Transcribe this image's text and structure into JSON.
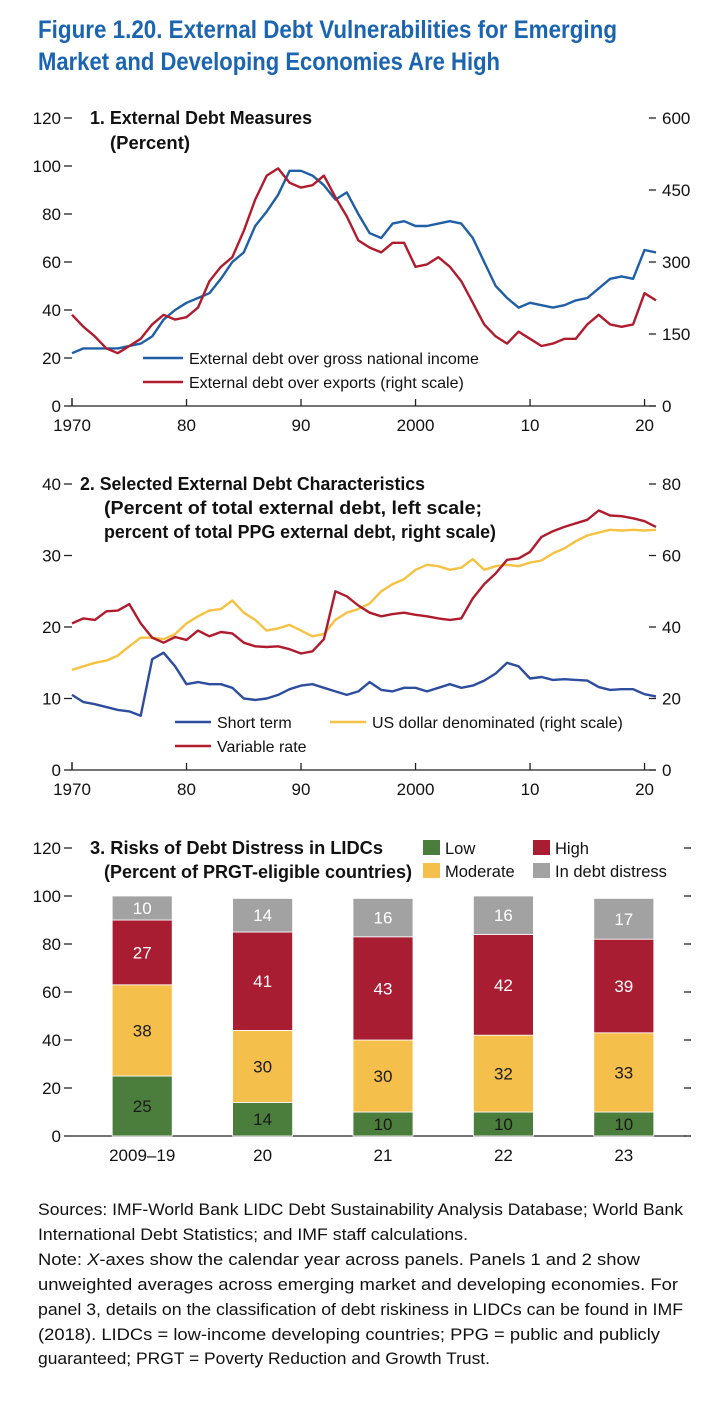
{
  "title": [
    "Figure 1.20. External Debt Vulnerabilities for Emerging",
    "Market and Developing Economies Are High"
  ],
  "chart_data": [
    {
      "type": "line",
      "title": "1. External Debt Measures",
      "subtitle": [
        "(Percent)"
      ],
      "x": [
        1970,
        1971,
        1972,
        1973,
        1974,
        1975,
        1976,
        1977,
        1978,
        1979,
        1980,
        1981,
        1982,
        1983,
        1984,
        1985,
        1986,
        1987,
        1988,
        1989,
        1990,
        1991,
        1992,
        1993,
        1994,
        1995,
        1996,
        1997,
        1998,
        1999,
        2000,
        2001,
        2002,
        2003,
        2004,
        2005,
        2006,
        2007,
        2008,
        2009,
        2010,
        2011,
        2012,
        2013,
        2014,
        2015,
        2016,
        2017,
        2018,
        2019,
        2020,
        2021
      ],
      "xlim": [
        1970,
        2021
      ],
      "xticks": [
        1970,
        {
          "value": 1980,
          "label": "80"
        },
        {
          "value": 1990,
          "label": "90"
        },
        2000,
        {
          "value": 2010,
          "label": "10"
        },
        {
          "value": 2020,
          "label": "20"
        }
      ],
      "ylim": [
        0,
        120
      ],
      "yticks": [
        0,
        20,
        40,
        60,
        80,
        100,
        120
      ],
      "y2lim": [
        0,
        600
      ],
      "y2ticks": [
        0,
        150,
        300,
        450,
        600
      ],
      "series": [
        {
          "name": "External debt over gross national income",
          "color": "#1f5fa6",
          "values": [
            22,
            24,
            24,
            24,
            24,
            25,
            26,
            29,
            36,
            40,
            43,
            45,
            47,
            53,
            60,
            64,
            75,
            81,
            88,
            98,
            98,
            96,
            92,
            86,
            89,
            80,
            72,
            70,
            76,
            77,
            75,
            75,
            76,
            77,
            76,
            70,
            60,
            50,
            45,
            41,
            43,
            42,
            41,
            42,
            44,
            45,
            49,
            53,
            54,
            53,
            65,
            64
          ]
        },
        {
          "name": "External debt over exports (right scale)",
          "color": "#b01c2e",
          "axis": "y2",
          "values": [
            190,
            165,
            145,
            120,
            110,
            125,
            140,
            170,
            190,
            180,
            185,
            205,
            260,
            290,
            310,
            365,
            430,
            480,
            495,
            465,
            455,
            460,
            480,
            435,
            395,
            345,
            330,
            320,
            340,
            340,
            290,
            295,
            310,
            290,
            260,
            215,
            170,
            145,
            130,
            155,
            140,
            125,
            130,
            140,
            140,
            170,
            190,
            170,
            165,
            170,
            235,
            220
          ]
        }
      ]
    },
    {
      "type": "line",
      "title": "2. Selected External Debt Characteristics",
      "subtitle": [
        "(Percent of total external debt, left scale;",
        "percent of total PPG external debt, right scale)"
      ],
      "x": [
        1970,
        1971,
        1972,
        1973,
        1974,
        1975,
        1976,
        1977,
        1978,
        1979,
        1980,
        1981,
        1982,
        1983,
        1984,
        1985,
        1986,
        1987,
        1988,
        1989,
        1990,
        1991,
        1992,
        1993,
        1994,
        1995,
        1996,
        1997,
        1998,
        1999,
        2000,
        2001,
        2002,
        2003,
        2004,
        2005,
        2006,
        2007,
        2008,
        2009,
        2010,
        2011,
        2012,
        2013,
        2014,
        2015,
        2016,
        2017,
        2018,
        2019,
        2020,
        2021
      ],
      "xlim": [
        1970,
        2021
      ],
      "xticks": [
        1970,
        {
          "value": 1980,
          "label": "80"
        },
        {
          "value": 1990,
          "label": "90"
        },
        2000,
        {
          "value": 2010,
          "label": "10"
        },
        {
          "value": 2020,
          "label": "20"
        }
      ],
      "ylim": [
        0,
        40
      ],
      "yticks": [
        0,
        10,
        20,
        30,
        40
      ],
      "y2lim": [
        0,
        80
      ],
      "y2ticks": [
        0,
        20,
        40,
        60,
        80
      ],
      "series": [
        {
          "name": "Short term",
          "color": "#2d4e9e",
          "values": [
            10.5,
            9.5,
            9.2,
            8.8,
            8.4,
            8.2,
            7.6,
            15.5,
            16.4,
            14.5,
            12,
            12.3,
            12,
            12,
            11.5,
            10,
            9.8,
            10,
            10.5,
            11.3,
            11.8,
            12,
            11.5,
            11,
            10.5,
            11,
            12.3,
            11.2,
            11,
            11.5,
            11.5,
            11,
            11.5,
            12,
            11.5,
            11.8,
            12.5,
            13.5,
            15,
            14.5,
            12.8,
            13,
            12.6,
            12.7,
            12.6,
            12.5,
            11.6,
            11.2,
            11.3,
            11.3,
            10.6,
            10.3
          ]
        },
        {
          "name": "US dollar denominated (right scale)",
          "color": "#f5c242",
          "axis": "y2",
          "values": [
            28,
            29,
            30,
            30.6,
            32,
            34.6,
            37,
            37,
            36.6,
            38,
            41,
            43,
            44.6,
            45,
            47.4,
            44,
            42,
            39,
            39.6,
            40.6,
            39,
            37.4,
            38,
            42,
            44,
            45,
            46.6,
            50,
            52,
            53.4,
            56,
            57.4,
            57,
            56,
            56.6,
            59,
            56,
            57,
            57.4,
            57,
            58,
            58.6,
            60.6,
            62,
            64,
            65.6,
            66.4,
            67.2,
            67,
            67.2,
            67,
            67.2
          ]
        },
        {
          "name": "Variable rate",
          "color": "#b01c2e",
          "values": [
            20.5,
            21.2,
            21,
            22.2,
            22.3,
            23.2,
            20.5,
            18.5,
            17.8,
            18.6,
            18.2,
            19.5,
            18.7,
            19.3,
            19.1,
            17.8,
            17.3,
            17.2,
            17.3,
            16.9,
            16.3,
            16.6,
            18.3,
            25,
            24.3,
            23,
            22,
            21.5,
            21.8,
            22,
            21.7,
            21.5,
            21.2,
            21,
            21.2,
            24,
            26,
            27.5,
            29.4,
            29.6,
            30.5,
            32.6,
            33.4,
            34,
            34.5,
            35,
            36.3,
            35.6,
            35.5,
            35.2,
            34.8,
            34
          ]
        }
      ]
    },
    {
      "type": "stacked_bar",
      "title": "3. Risks of Debt Distress in LIDCs",
      "subtitle": [
        "(Percent of PRGT-eligible countries)"
      ],
      "categories": [
        "2009–19",
        "20",
        "21",
        "22",
        "23"
      ],
      "ylim": [
        0,
        120
      ],
      "yticks": [
        0,
        20,
        40,
        60,
        80,
        100,
        120
      ],
      "series": [
        {
          "name": "Low",
          "color": "#4b7d3c",
          "values": [
            25,
            14,
            10,
            10,
            10
          ]
        },
        {
          "name": "Moderate",
          "color": "#f4bf4b",
          "values": [
            38,
            30,
            30,
            32,
            33
          ]
        },
        {
          "name": "High",
          "color": "#a91d33",
          "values": [
            27,
            41,
            43,
            42,
            39
          ]
        },
        {
          "name": "In debt distress",
          "color": "#a2a2a2",
          "values": [
            10,
            14,
            16,
            16,
            17
          ]
        }
      ]
    }
  ],
  "sources": [
    "Sources: IMF-World Bank LIDC Debt Sustainability Analysis Database; World Bank",
    "International Debt Statistics; and IMF staff calculations."
  ],
  "note": {
    "label": "Note: ",
    "em": "X",
    "lines": [
      "-axes show the calendar year across panels. Panels 1 and 2 show",
      "unweighted averages across emerging market and developing economies. For",
      "panel 3, details on the classification of debt riskiness in LIDCs can be found in IMF",
      "(2018). LIDCs = low-income developing countries; PPG = public and publicly",
      "guaranteed; PRGT = Poverty Reduction and Growth Trust."
    ]
  }
}
